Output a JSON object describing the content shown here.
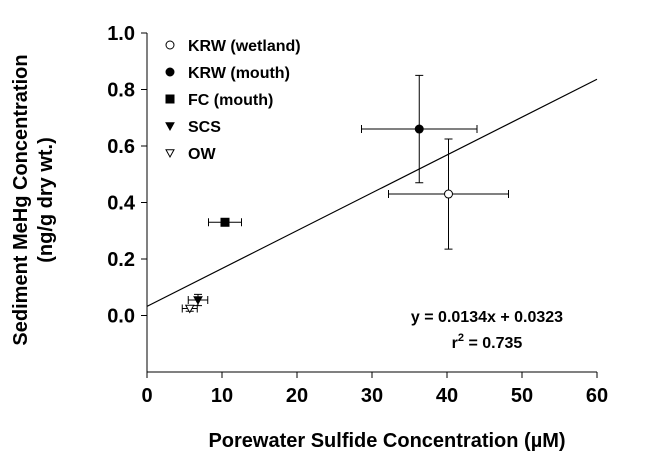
{
  "chart_data": {
    "type": "scatter",
    "x_label": "Porewater Sulfide Concentration (µM)",
    "y_label": [
      "Sediment MeHg Concentration",
      "(ng/g dry wt.)"
    ],
    "xlim": [
      0,
      60
    ],
    "xticks": [
      0,
      10,
      20,
      30,
      40,
      50,
      60
    ],
    "ylim": [
      -0.2,
      1.0
    ],
    "yticks": [
      {
        "value": 0,
        "label": "0.0"
      },
      {
        "value": 0.2,
        "label": "0.2"
      },
      {
        "value": 0.4,
        "label": "0.4"
      },
      {
        "value": 0.6,
        "label": "0.6"
      },
      {
        "value": 0.8,
        "label": "0.8"
      },
      {
        "value": 1.0,
        "label": "1.0"
      }
    ],
    "color": "#000000",
    "series": [
      {
        "name": "KRW (wetland)",
        "marker": "circle",
        "filled": false,
        "x": [
          40.2
        ],
        "values": [
          0.43
        ],
        "xerr": [
          8.0
        ],
        "yerr": [
          0.195
        ]
      },
      {
        "name": "KRW (mouth)",
        "marker": "circle",
        "filled": true,
        "x": [
          36.3
        ],
        "values": [
          0.66
        ],
        "xerr": [
          7.7
        ],
        "yerr": [
          0.19
        ]
      },
      {
        "name": "FC (mouth)",
        "marker": "square",
        "filled": true,
        "x": [
          10.4
        ],
        "values": [
          0.33
        ],
        "xerr": [
          2.2
        ],
        "yerr": [
          0.01
        ]
      },
      {
        "name": "SCS",
        "marker": "triangle-down",
        "filled": true,
        "x": [
          6.8
        ],
        "values": [
          0.055
        ],
        "xerr": [
          1.3
        ],
        "yerr": [
          0.02
        ]
      },
      {
        "name": "OW",
        "marker": "triangle-down",
        "filled": false,
        "x": [
          5.7
        ],
        "values": [
          0.025
        ],
        "xerr": [
          1.0
        ],
        "yerr": [
          0.01
        ]
      }
    ],
    "fit": {
      "slope": 0.0134,
      "intercept": 0.0323
    },
    "annotations": [
      "y = 0.0134x + 0.0323",
      "r",
      "2",
      " = 0.735"
    ]
  }
}
